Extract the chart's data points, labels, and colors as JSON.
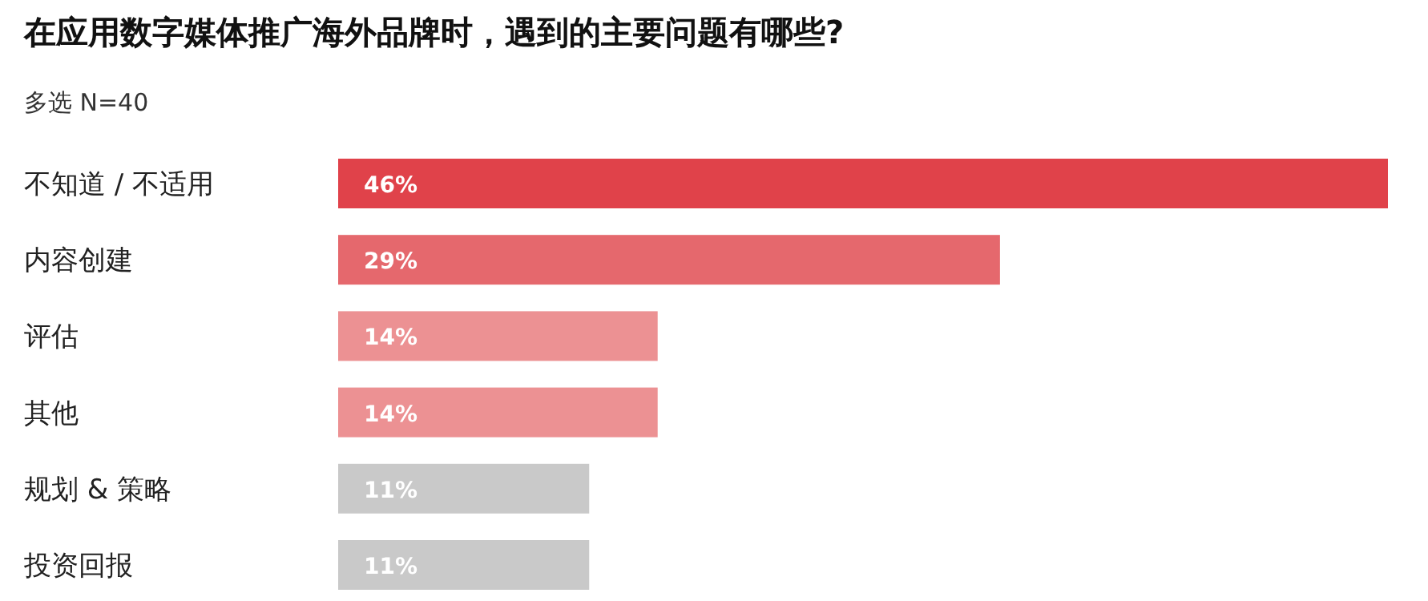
{
  "chart_data": {
    "type": "bar",
    "orientation": "horizontal",
    "title": "在应用数字媒体推广海外品牌时，遇到的主要问题有哪些?",
    "subtitle": "多选  N=40",
    "categories": [
      "不知道 / 不适用",
      "内容创建",
      "评估",
      "其他",
      "规划 & 策略",
      "投资回报"
    ],
    "values": [
      46,
      29,
      14,
      14,
      11,
      11
    ],
    "colors": [
      "#e0424a",
      "#e5686d",
      "#ec9193",
      "#ec9193",
      "#c9c9c9",
      "#c9c9c9"
    ],
    "value_labels": [
      "46%",
      "29%",
      "14%",
      "14%",
      "11%",
      "11%"
    ]
  }
}
